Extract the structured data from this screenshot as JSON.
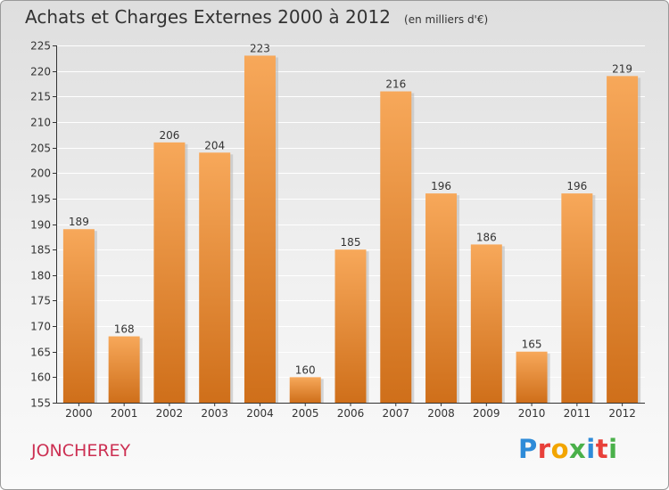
{
  "header": {
    "title": "Achats et Charges Externes 2000 à 2012",
    "unit": "(en milliers d'€)"
  },
  "footer": {
    "commune": "JONCHEREY",
    "logo_text": "Proxiti",
    "logo_colors": [
      "#2e8bd8",
      "#e8403a",
      "#f2a500",
      "#4ab04a",
      "#2e8bd8",
      "#e8403a",
      "#4ab04a"
    ]
  },
  "colors": {
    "bar_light": "#f7a85a",
    "bar_dark": "#cf6f1a",
    "axis": "#333333",
    "grid": "#ffffff",
    "title": "#333333",
    "commune": "#cc2f52"
  },
  "chart_data": {
    "type": "bar",
    "title": "Achats et Charges Externes 2000 à 2012",
    "subtitle": "(en milliers d'€)",
    "categories": [
      "2000",
      "2001",
      "2002",
      "2003",
      "2004",
      "2005",
      "2006",
      "2007",
      "2008",
      "2009",
      "2010",
      "2011",
      "2012"
    ],
    "values": [
      189,
      168,
      206,
      204,
      223,
      160,
      185,
      216,
      196,
      186,
      165,
      196,
      219
    ],
    "ylim": [
      155,
      225
    ],
    "yticks": [
      155,
      160,
      165,
      170,
      175,
      180,
      185,
      190,
      195,
      200,
      205,
      210,
      215,
      220,
      225
    ],
    "grid": true,
    "data_labels": true,
    "xlabel": "",
    "ylabel": ""
  }
}
